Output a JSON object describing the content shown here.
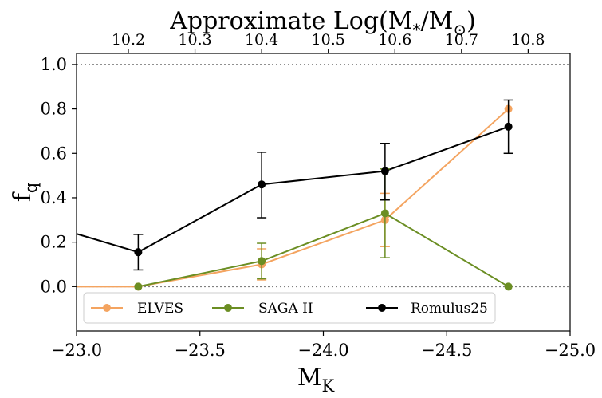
{
  "chart_data": {
    "type": "line",
    "title": "",
    "top_axis": {
      "label_main": "Approximate Log(M",
      "label_sub1": "*",
      "label_mid": "/M",
      "label_sub2": "⊙",
      "label_end": ")",
      "ticks": [
        10.2,
        10.3,
        10.4,
        10.5,
        10.6,
        10.7,
        10.8
      ],
      "tick_labels": [
        "10.2",
        "10.3",
        "10.4",
        "10.5",
        "10.6",
        "10.7",
        "10.8"
      ],
      "tick_x_positions": [
        -23.21,
        -23.48,
        -23.75,
        -24.02,
        -24.29,
        -24.56,
        -24.83
      ]
    },
    "xlabel_main": "M",
    "xlabel_sub": "K",
    "ylabel_main": "f",
    "ylabel_sub": "q",
    "xlim": [
      -23.0,
      -25.0
    ],
    "ylim": [
      -0.2,
      1.05
    ],
    "x_ticks": [
      -23.0,
      -23.5,
      -24.0,
      -24.5,
      -25.0
    ],
    "x_tick_labels": [
      "−23.0",
      "−23.5",
      "−24.0",
      "−24.5",
      "−25.0"
    ],
    "y_ticks": [
      0.0,
      0.2,
      0.4,
      0.6,
      0.8,
      1.0
    ],
    "y_tick_labels": [
      "0.0",
      "0.2",
      "0.4",
      "0.6",
      "0.8",
      "1.0"
    ],
    "reference_lines": [
      0.0,
      1.0
    ],
    "legend_position": "lower-left",
    "series": [
      {
        "name": "ELVES",
        "color": "#f4a460",
        "x": [
          -22.75,
          -23.25,
          -23.75,
          -24.25,
          -24.75
        ],
        "y": [
          0.0,
          0.0,
          0.1,
          0.3,
          0.8
        ],
        "err_low": [
          0,
          0,
          0.07,
          0.12,
          0.0
        ],
        "err_high": [
          0,
          0,
          0.07,
          0.12,
          0.0
        ]
      },
      {
        "name": "SAGA II",
        "color": "#6b8e23",
        "x": [
          -23.25,
          -23.75,
          -24.25,
          -24.75
        ],
        "y": [
          0.0,
          0.115,
          0.33,
          0.0
        ],
        "err_low": [
          0,
          0.08,
          0.2,
          0
        ],
        "err_high": [
          0,
          0.08,
          0.2,
          0
        ]
      },
      {
        "name": "Romulus25",
        "color": "#000000",
        "x": [
          -22.75,
          -23.25,
          -23.75,
          -24.25,
          -24.75
        ],
        "y": [
          0.32,
          0.155,
          0.46,
          0.52,
          0.72
        ],
        "err_low": [
          0.1,
          0.08,
          0.15,
          0.13,
          0.12
        ],
        "err_high": [
          0.1,
          0.08,
          0.145,
          0.125,
          0.12
        ]
      }
    ]
  }
}
